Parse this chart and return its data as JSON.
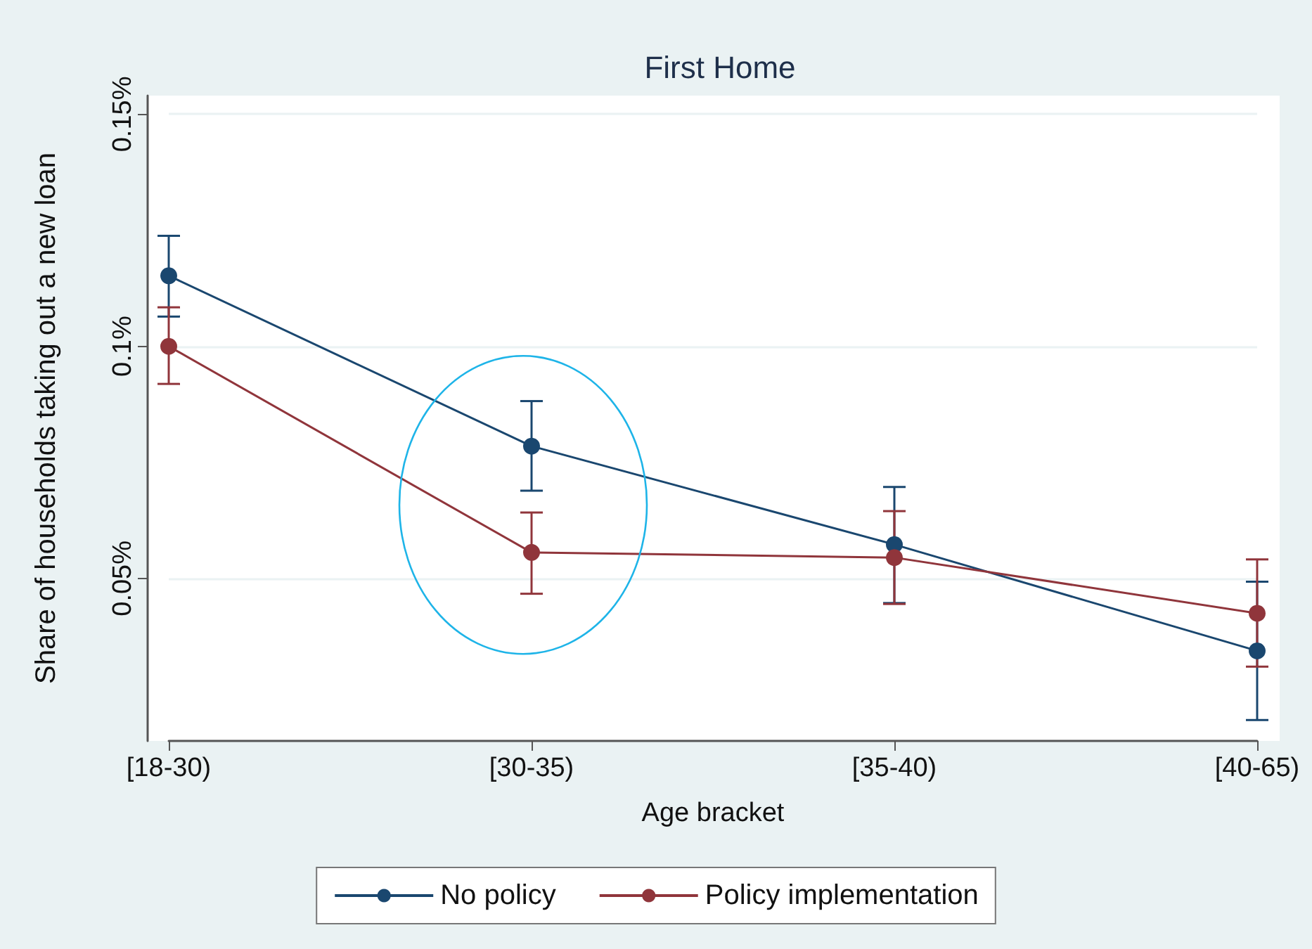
{
  "chart_data": {
    "type": "line",
    "title": "First Home",
    "xlabel": "Age bracket",
    "ylabel": "Share of households taking out a new loan",
    "categories": [
      "[18-30)",
      "[30-35)",
      "[35-40)",
      "[40-65)"
    ],
    "series": [
      {
        "name": "No policy",
        "color": "#1a476f",
        "values": [
          0.1152,
          0.0785,
          0.0573,
          0.0344
        ],
        "errors": [
          [
            0.1064,
            0.1238
          ],
          [
            0.0689,
            0.0882
          ],
          [
            0.0447,
            0.0697
          ],
          [
            0.0195,
            0.0493
          ]
        ]
      },
      {
        "name": "Policy implementation",
        "color": "#90353b",
        "values": [
          0.1,
          0.0556,
          0.0545,
          0.0425
        ],
        "errors": [
          [
            0.0919,
            0.1084
          ],
          [
            0.0467,
            0.0642
          ],
          [
            0.0445,
            0.0645
          ],
          [
            0.031,
            0.0541
          ]
        ]
      }
    ],
    "ylim": [
      0.015,
      0.154
    ],
    "yticks": [
      {
        "value": 0.05,
        "label": "0.05%"
      },
      {
        "value": 0.1,
        "label": "0.1%"
      },
      {
        "value": 0.15,
        "label": "0.15%"
      }
    ],
    "grid": "y",
    "legend": "bottom",
    "marker": "circle",
    "line_style": "solid"
  }
}
